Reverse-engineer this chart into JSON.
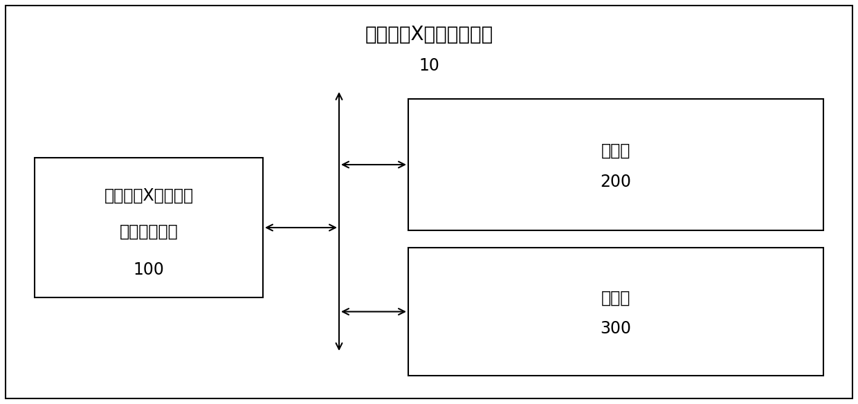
{
  "title_main": "海底原位X荧光测量设备",
  "title_sub": "10",
  "box_left_label1": "海底原位X荧光测量",
  "box_left_label2": "影响监管装置",
  "box_left_num": "100",
  "box_top_right_label": "处理器",
  "box_top_right_num": "200",
  "box_bot_right_label": "存储器",
  "box_bot_right_num": "300",
  "bg_color": "#ffffff",
  "box_color": "#ffffff",
  "line_color": "#000000",
  "title_fontsize": 20,
  "label_fontsize": 17,
  "num_fontsize": 17,
  "outer_border_color": "#000000",
  "figwidth": 12.4,
  "figheight": 5.84,
  "dpi": 100
}
